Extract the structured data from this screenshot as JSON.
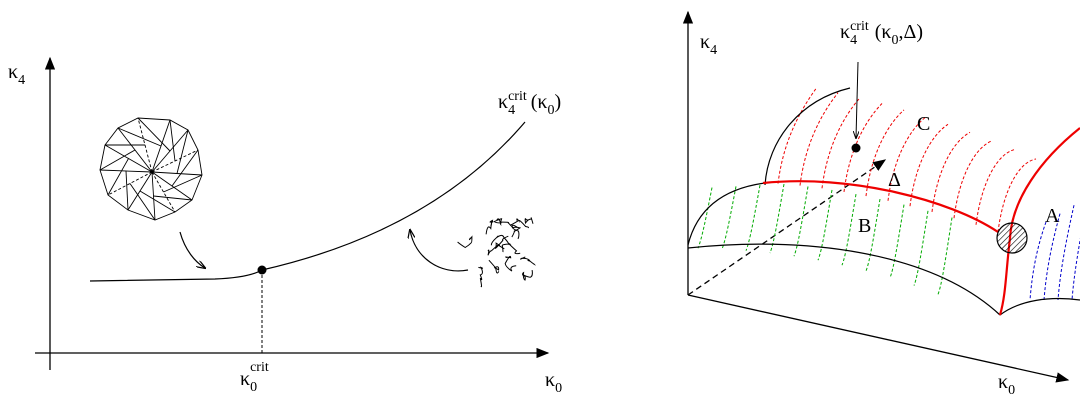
{
  "left_panel": {
    "y_axis_label": {
      "symbol": "κ",
      "index": "4"
    },
    "x_axis_label": {
      "symbol": "κ",
      "index": "0"
    },
    "curve_label": {
      "symbol": "κ",
      "index": "4",
      "superscript": "crit",
      "argument_open": "(κ",
      "argument_index": "0",
      "argument_close": ")"
    },
    "point_label": {
      "symbol": "κ",
      "index": "0",
      "superscript": "crit"
    }
  },
  "right_panel": {
    "y_axis_label": {
      "symbol": "κ",
      "index": "4"
    },
    "x_axis_label": {
      "symbol": "κ",
      "index": "0"
    },
    "surface_label": {
      "symbol": "κ",
      "index": "4",
      "superscript": "crit",
      "argument_open": "(κ",
      "argument_index": "0",
      "argument_close": ",Δ)"
    },
    "regions": [
      "C",
      "B",
      "A"
    ],
    "direction_label": "Δ"
  }
}
